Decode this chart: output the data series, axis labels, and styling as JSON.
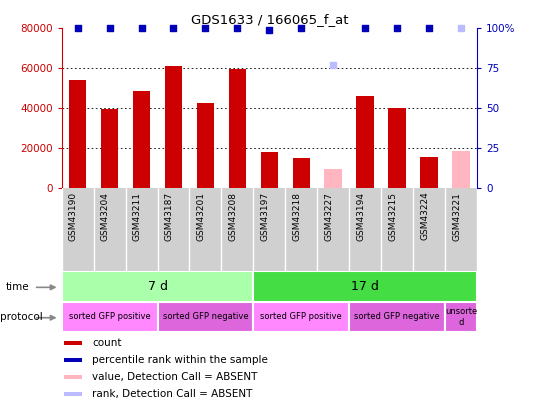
{
  "title": "GDS1633 / 166065_f_at",
  "samples": [
    "GSM43190",
    "GSM43204",
    "GSM43211",
    "GSM43187",
    "GSM43201",
    "GSM43208",
    "GSM43197",
    "GSM43218",
    "GSM43227",
    "GSM43194",
    "GSM43215",
    "GSM43224",
    "GSM43221"
  ],
  "bar_values": [
    54000,
    39500,
    48500,
    61000,
    42500,
    59500,
    18000,
    15000,
    9500,
    46000,
    40000,
    15500,
    18500
  ],
  "bar_colors": [
    "#cc0000",
    "#cc0000",
    "#cc0000",
    "#cc0000",
    "#cc0000",
    "#cc0000",
    "#cc0000",
    "#cc0000",
    "#ffb6c1",
    "#cc0000",
    "#cc0000",
    "#cc0000",
    "#ffb6c1"
  ],
  "percentile_values": [
    100,
    100,
    100,
    100,
    100,
    100,
    99,
    100,
    77,
    100,
    100,
    100,
    100
  ],
  "percentile_colors": [
    "#0000bb",
    "#0000bb",
    "#0000bb",
    "#0000bb",
    "#0000bb",
    "#0000bb",
    "#0000bb",
    "#0000bb",
    "#bbbbff",
    "#0000bb",
    "#0000bb",
    "#0000bb",
    "#bbbbff"
  ],
  "ylim_left": [
    0,
    80000
  ],
  "ylim_right": [
    0,
    100
  ],
  "yticks_left": [
    0,
    20000,
    40000,
    60000,
    80000
  ],
  "yticks_right": [
    0,
    25,
    50,
    75,
    100
  ],
  "time_groups": [
    {
      "label": "7 d",
      "start": 0,
      "end": 6,
      "color": "#aaffaa"
    },
    {
      "label": "17 d",
      "start": 6,
      "end": 13,
      "color": "#44dd44"
    }
  ],
  "protocol_groups": [
    {
      "label": "sorted GFP positive",
      "start": 0,
      "end": 3,
      "color": "#ff88ff"
    },
    {
      "label": "sorted GFP negative",
      "start": 3,
      "end": 6,
      "color": "#dd66dd"
    },
    {
      "label": "sorted GFP positive",
      "start": 6,
      "end": 9,
      "color": "#ff88ff"
    },
    {
      "label": "sorted GFP negative",
      "start": 9,
      "end": 12,
      "color": "#dd66dd"
    },
    {
      "label": "unsorte\nd",
      "start": 12,
      "end": 13,
      "color": "#dd66dd"
    }
  ],
  "legend_items": [
    {
      "label": "count",
      "color": "#cc0000"
    },
    {
      "label": "percentile rank within the sample",
      "color": "#0000bb"
    },
    {
      "label": "value, Detection Call = ABSENT",
      "color": "#ffb6c1"
    },
    {
      "label": "rank, Detection Call = ABSENT",
      "color": "#bbbbff"
    }
  ],
  "tick_label_color_left": "#cc0000",
  "tick_label_color_right": "#0000bb",
  "bar_width": 0.55
}
